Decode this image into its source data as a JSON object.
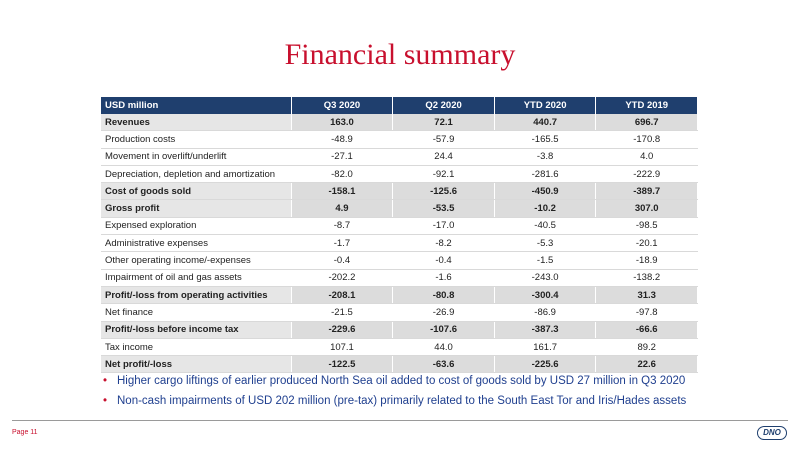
{
  "title": "Financial summary",
  "table": {
    "headers": [
      "USD million",
      "Q3 2020",
      "Q2 2020",
      "YTD 2020",
      "YTD 2019"
    ],
    "rows": [
      {
        "label": "Revenues",
        "bold": true,
        "values": [
          "163.0",
          "72.1",
          "440.7",
          "696.7"
        ]
      },
      {
        "label": "Production costs",
        "bold": false,
        "values": [
          "-48.9",
          "-57.9",
          "-165.5",
          "-170.8"
        ]
      },
      {
        "label": "Movement in overlift/underlift",
        "bold": false,
        "values": [
          "-27.1",
          "24.4",
          "-3.8",
          "4.0"
        ]
      },
      {
        "label": "Depreciation, depletion and amortization",
        "bold": false,
        "values": [
          "-82.0",
          "-92.1",
          "-281.6",
          "-222.9"
        ]
      },
      {
        "label": "Cost of goods sold",
        "bold": true,
        "values": [
          "-158.1",
          "-125.6",
          "-450.9",
          "-389.7"
        ]
      },
      {
        "label": "Gross profit",
        "bold": true,
        "values": [
          "4.9",
          "-53.5",
          "-10.2",
          "307.0"
        ]
      },
      {
        "label": "Expensed exploration",
        "bold": false,
        "values": [
          "-8.7",
          "-17.0",
          "-40.5",
          "-98.5"
        ]
      },
      {
        "label": "Administrative expenses",
        "bold": false,
        "values": [
          "-1.7",
          "-8.2",
          "-5.3",
          "-20.1"
        ]
      },
      {
        "label": "Other operating income/-expenses",
        "bold": false,
        "values": [
          "-0.4",
          "-0.4",
          "-1.5",
          "-18.9"
        ]
      },
      {
        "label": "Impairment of oil and gas assets",
        "bold": false,
        "values": [
          "-202.2",
          "-1.6",
          "-243.0",
          "-138.2"
        ]
      },
      {
        "label": "Profit/-loss from operating activities",
        "bold": true,
        "values": [
          "-208.1",
          "-80.8",
          "-300.4",
          "31.3"
        ]
      },
      {
        "label": "Net finance",
        "bold": false,
        "values": [
          "-21.5",
          "-26.9",
          "-86.9",
          "-97.8"
        ]
      },
      {
        "label": "Profit/-loss before income tax",
        "bold": true,
        "values": [
          "-229.6",
          "-107.6",
          "-387.3",
          "-66.6"
        ]
      },
      {
        "label": "Tax income",
        "bold": false,
        "values": [
          "107.1",
          "44.0",
          "161.7",
          "89.2"
        ]
      },
      {
        "label": "Net profit/-loss",
        "bold": true,
        "values": [
          "-122.5",
          "-63.6",
          "-225.6",
          "22.6"
        ]
      }
    ]
  },
  "bullets": [
    "Higher cargo liftings of earlier produced North Sea oil added to cost of goods sold by USD 27 million in Q3 2020",
    "Non-cash impairments of USD 202 million (pre-tax) primarily related to the South East Tor and Iris/Hades assets"
  ],
  "bullet_marker": "•",
  "footer": {
    "page": "Page 11",
    "logo": "DNO"
  },
  "colors": {
    "title": "#c8102e",
    "header_bg": "#1f3f6e",
    "bullet_text": "#1f3f8f",
    "bullet_marker": "#c8102e"
  }
}
